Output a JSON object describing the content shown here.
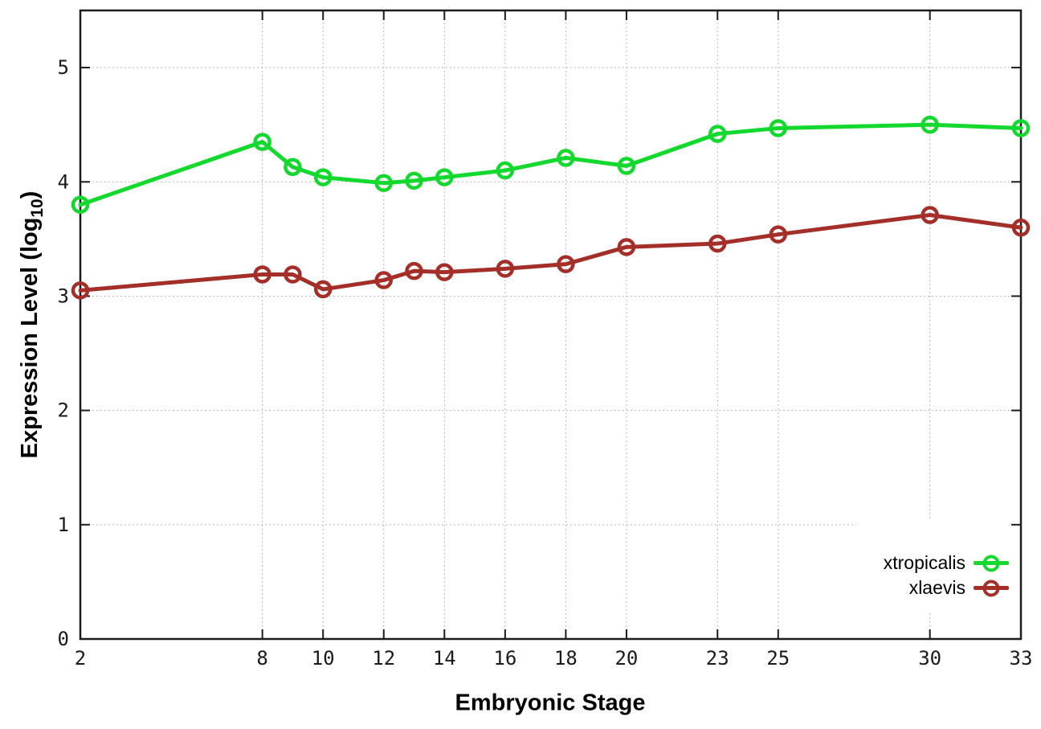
{
  "chart_data": {
    "type": "line",
    "title": "",
    "xlabel": "Embryonic Stage",
    "ylabel": "Expression Level (log10)",
    "ylabel_parts": {
      "prefix": "Expression Level (log",
      "subscript": "10",
      "suffix": ")"
    },
    "xlim": [
      2,
      33
    ],
    "ylim": [
      0,
      5.5
    ],
    "x_ticks": [
      2,
      8,
      10,
      12,
      14,
      16,
      18,
      20,
      23,
      25,
      30,
      33
    ],
    "y_ticks": [
      0,
      1,
      2,
      3,
      4,
      5
    ],
    "grid": true,
    "legend_position": "bottom-right",
    "x": [
      2,
      8,
      9,
      10,
      12,
      13,
      14,
      16,
      18,
      20,
      23,
      25,
      30,
      33
    ],
    "series": [
      {
        "name": "xtropicalis",
        "color": "#13d92e",
        "values": [
          3.8,
          4.35,
          4.13,
          4.04,
          3.99,
          4.01,
          4.04,
          4.1,
          4.21,
          4.14,
          4.42,
          4.47,
          4.5,
          4.47
        ]
      },
      {
        "name": "xlaevis",
        "color": "#a42f29",
        "values": [
          3.05,
          3.19,
          3.19,
          3.06,
          3.14,
          3.22,
          3.21,
          3.24,
          3.28,
          3.43,
          3.46,
          3.54,
          3.71,
          3.6
        ]
      }
    ]
  }
}
